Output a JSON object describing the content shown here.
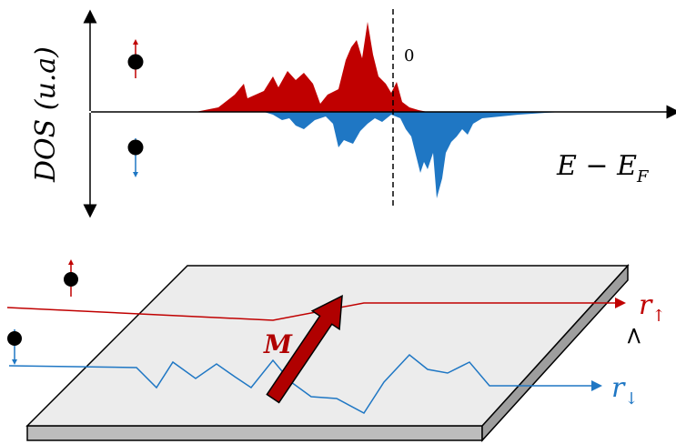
{
  "dos_panel": {
    "ylabel": "DOS (u.a)",
    "xlabel_main": "E − E",
    "xlabel_sub": "F",
    "fermi_label": "0",
    "colors": {
      "spin_up": "#c00000",
      "spin_down": "#1f77c4",
      "axis": "#000000"
    }
  },
  "slab_panel": {
    "magnetization_label": "M",
    "r_up_main": "r",
    "r_up_sub": "↑",
    "r_down_main": "r",
    "r_down_sub": "↓",
    "comparison_symbol": ">",
    "colors": {
      "slab_top": "#ececec",
      "slab_side": "#c8c8c8",
      "arrow": "#b00000",
      "up_path": "#c00000",
      "down_path": "#1f77c4"
    }
  }
}
